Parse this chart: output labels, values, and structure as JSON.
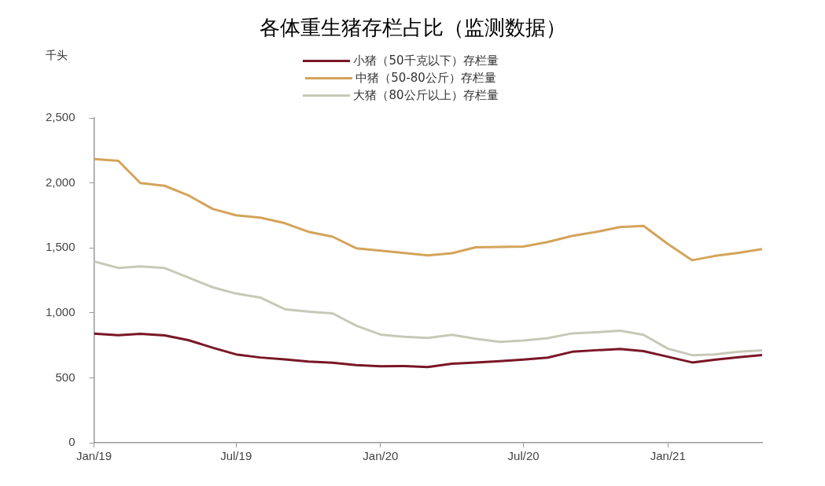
{
  "chart_data": {
    "type": "line",
    "title": "各体重生猪存栏占比（监测数据）",
    "ylabel": "千头",
    "x": [
      "2019-01",
      "2019-02",
      "2019-03",
      "2019-04",
      "2019-05",
      "2019-06",
      "2019-07",
      "2019-08",
      "2019-09",
      "2019-10",
      "2019-11",
      "2019-12",
      "2020-01",
      "2020-02",
      "2020-03",
      "2020-04",
      "2020-05",
      "2020-06",
      "2020-07",
      "2020-08",
      "2020-09",
      "2020-10",
      "2020-11",
      "2020-12",
      "2021-01",
      "2021-02",
      "2021-03",
      "2021-04",
      "2021-05"
    ],
    "series": [
      {
        "name": "小猪（50千克以下）存栏量",
        "color": "#7a1626",
        "values": [
          840,
          828,
          838,
          826,
          790,
          732,
          680,
          656,
          642,
          625,
          616,
          598,
          588,
          590,
          582,
          608,
          618,
          628,
          640,
          655,
          700,
          712,
          722,
          705,
          662,
          618,
          638,
          658,
          675
        ]
      },
      {
        "name": "中猪（50-80公斤）存栏量",
        "color": "#d4a45a",
        "values": [
          2183,
          2170,
          1999,
          1978,
          1905,
          1800,
          1751,
          1733,
          1690,
          1624,
          1586,
          1497,
          1478,
          1460,
          1442,
          1459,
          1504,
          1507,
          1510,
          1545,
          1592,
          1622,
          1660,
          1669,
          1530,
          1405,
          1437,
          1462,
          1491
        ]
      },
      {
        "name": "大猪（80公斤以上）存栏量",
        "color": "#c8c8b8",
        "values": [
          1396,
          1345,
          1358,
          1345,
          1272,
          1197,
          1148,
          1117,
          1028,
          1009,
          996,
          901,
          833,
          815,
          806,
          831,
          800,
          776,
          787,
          805,
          842,
          850,
          862,
          831,
          724,
          674,
          680,
          700,
          712
        ]
      }
    ],
    "xlim": [
      "2019-01",
      "2021-05"
    ],
    "xticks": [
      {
        "value": "2019-01",
        "label": "Jan/19"
      },
      {
        "value": "2019-07",
        "label": "Jul/19"
      },
      {
        "value": "2020-01",
        "label": "Jan/20"
      },
      {
        "value": "2020-07",
        "label": "Jul/20"
      },
      {
        "value": "2021-01",
        "label": "Jan/21"
      }
    ],
    "ylim": [
      0,
      2500
    ],
    "yticks": [
      0,
      500,
      {
        "value": 1000,
        "label": "1,000"
      },
      {
        "value": 1500,
        "label": "1,500"
      },
      {
        "value": 2000,
        "label": "2,000"
      },
      {
        "value": 2500,
        "label": "2,500"
      }
    ],
    "grid": false,
    "legend": "top",
    "marker": "none",
    "line_style": "solid"
  }
}
